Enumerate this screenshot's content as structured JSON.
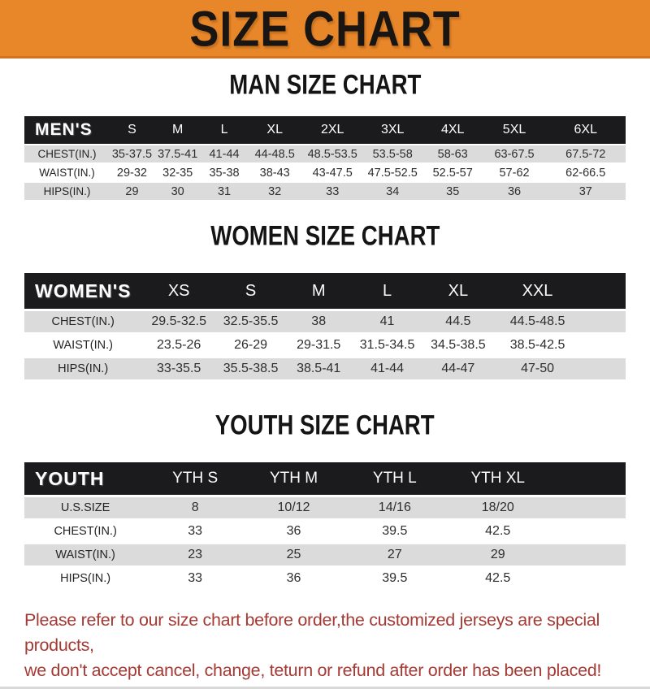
{
  "banner": {
    "title": "SIZE CHART",
    "bg_color": "#E8862A",
    "text_color": "#181512"
  },
  "colors": {
    "header_bar": "#1B1B1D",
    "shaded_row": "#DBDBDB",
    "footer_text": "#A53A35"
  },
  "sections": [
    {
      "heading": "MAN SIZE CHART",
      "table": {
        "header_label": "MEN'S",
        "columns": [
          "S",
          "M",
          "L",
          "XL",
          "2XL",
          "3XL",
          "4XL",
          "5XL",
          "6XL"
        ],
        "rows": [
          {
            "label": "CHEST(IN.)",
            "values": [
              "35-37.5",
              "37.5-41",
              "41-44",
              "44-48.5",
              "48.5-53.5",
              "53.5-58",
              "58-63",
              "63-67.5",
              "67.5-72"
            ]
          },
          {
            "label": "WAIST(IN.)",
            "values": [
              "29-32",
              "32-35",
              "35-38",
              "38-43",
              "43-47.5",
              "47.5-52.5",
              "52.5-57",
              "57-62",
              "62-66.5"
            ]
          },
          {
            "label": "HIPS(IN.)",
            "values": [
              "29",
              "30",
              "31",
              "32",
              "33",
              "34",
              "35",
              "36",
              "37"
            ]
          }
        ]
      }
    },
    {
      "heading": "WOMEN SIZE CHART",
      "table": {
        "header_label": "WOMEN'S",
        "columns": [
          "XS",
          "S",
          "M",
          "L",
          "XL",
          "XXL"
        ],
        "rows": [
          {
            "label": "CHEST(IN.)",
            "values": [
              "29.5-32.5",
              "32.5-35.5",
              "38",
              "41",
              "44.5",
              "44.5-48.5"
            ]
          },
          {
            "label": "WAIST(IN.)",
            "values": [
              "23.5-26",
              "26-29",
              "29-31.5",
              "31.5-34.5",
              "34.5-38.5",
              "38.5-42.5"
            ]
          },
          {
            "label": "HIPS(IN.)",
            "values": [
              "33-35.5",
              "35.5-38.5",
              "38.5-41",
              "41-44",
              "44-47",
              "47-50"
            ]
          }
        ]
      }
    },
    {
      "heading": "YOUTH SIZE CHART",
      "table": {
        "header_label": "YOUTH",
        "columns": [
          "YTH S",
          "YTH M",
          "YTH L",
          "YTH XL"
        ],
        "rows": [
          {
            "label": "U.S.SIZE",
            "values": [
              "8",
              "10/12",
              "14/16",
              "18/20"
            ]
          },
          {
            "label": "CHEST(IN.)",
            "values": [
              "33",
              "36",
              "39.5",
              "42.5"
            ]
          },
          {
            "label": "WAIST(IN.)",
            "values": [
              "23",
              "25",
              "27",
              "29"
            ]
          },
          {
            "label": "HIPS(IN.)",
            "values": [
              "33",
              "36",
              "39.5",
              "42.5"
            ]
          }
        ]
      }
    }
  ],
  "footer": {
    "lines": [
      "Please refer to our size chart before order,the customized jerseys are special products,",
      "we don't accept cancel, change, teturn or refund after order has been placed!"
    ]
  }
}
